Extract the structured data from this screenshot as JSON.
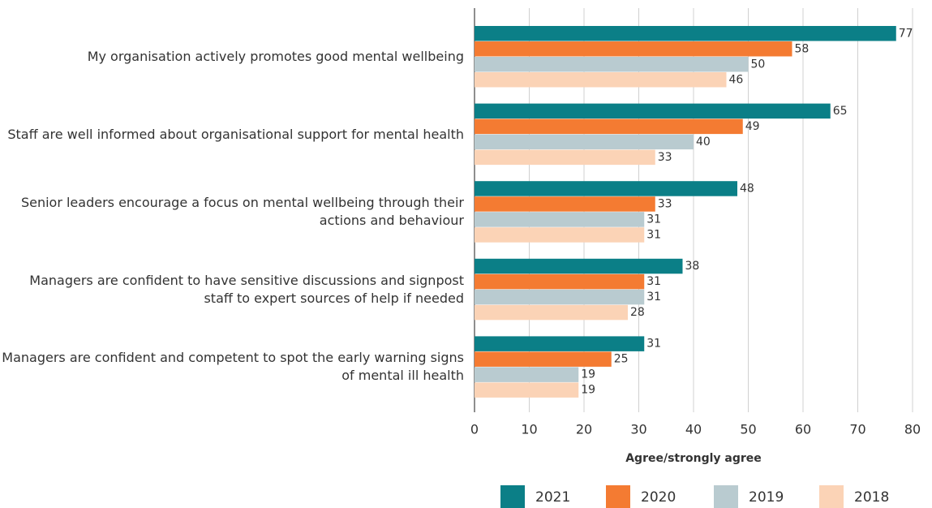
{
  "chart_data": {
    "type": "bar",
    "orientation": "horizontal",
    "categories": [
      "My organisation actively promotes good mental wellbeing",
      "Staff are well informed about organisational support for mental health",
      "Senior leaders encourage a focus on mental wellbeing through their actions and behaviour",
      "Managers are confident to have sensitive discussions and signpost staff to expert sources of help if needed",
      "Managers are confident and competent to spot the early warning signs of mental ill health"
    ],
    "series": [
      {
        "name": "2021",
        "color": "#0b7f87",
        "values": [
          77,
          65,
          48,
          38,
          31
        ]
      },
      {
        "name": "2020",
        "color": "#f47b32",
        "values": [
          58,
          49,
          33,
          31,
          25
        ]
      },
      {
        "name": "2019",
        "color": "#b9cbd0",
        "values": [
          50,
          40,
          31,
          31,
          19
        ]
      },
      {
        "name": "2018",
        "color": "#fbd3b6",
        "values": [
          46,
          33,
          31,
          28,
          19
        ]
      }
    ],
    "xlabel": "Agree/strongly agree",
    "xlim": [
      0,
      80
    ],
    "xticks": [
      0,
      10,
      20,
      30,
      40,
      50,
      60,
      70,
      80
    ],
    "grid": true,
    "legend": "bottom"
  }
}
